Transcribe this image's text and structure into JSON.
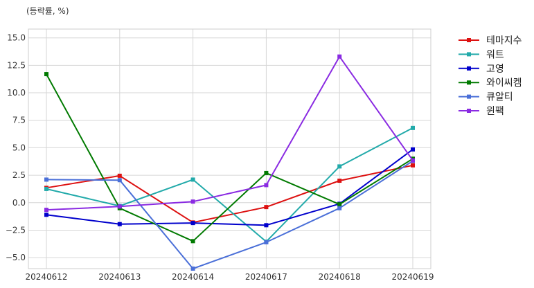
{
  "chart_data": {
    "type": "line",
    "unit_note": "(등락률, %)",
    "categories": [
      "20240612",
      "20240613",
      "20240614",
      "20240617",
      "20240618",
      "20240619"
    ],
    "ylim": [
      -6.0,
      15.8
    ],
    "yticks": [
      -5.0,
      -2.5,
      0.0,
      2.5,
      5.0,
      7.5,
      10.0,
      12.5,
      15.0
    ],
    "ytick_labels": [
      "−5.0",
      "−2.5",
      "0.0",
      "2.5",
      "5.0",
      "7.5",
      "10.0",
      "12.5",
      "15.0"
    ],
    "grid": true,
    "legend_position": "outside-top-right",
    "series": [
      {
        "name": "테마지수",
        "color": "#dd1111",
        "values": [
          1.35,
          2.45,
          -1.8,
          -0.4,
          2.0,
          3.4
        ]
      },
      {
        "name": "워트",
        "color": "#22aaaa",
        "values": [
          1.25,
          -0.3,
          2.1,
          -3.55,
          3.3,
          6.8
        ]
      },
      {
        "name": "고영",
        "color": "#0000cc",
        "values": [
          -1.1,
          -1.95,
          -1.85,
          -2.05,
          -0.1,
          4.85
        ]
      },
      {
        "name": "와이씨켐",
        "color": "#007a00",
        "values": [
          11.7,
          -0.5,
          -3.5,
          2.7,
          -0.15,
          4.0
        ]
      },
      {
        "name": "큐알티",
        "color": "#4a6fd8",
        "values": [
          2.1,
          2.05,
          -6.0,
          -3.6,
          -0.5,
          3.8
        ]
      },
      {
        "name": "윈팩",
        "color": "#8a2be2",
        "values": [
          -0.65,
          -0.35,
          0.1,
          1.6,
          13.3,
          3.85
        ]
      }
    ]
  }
}
